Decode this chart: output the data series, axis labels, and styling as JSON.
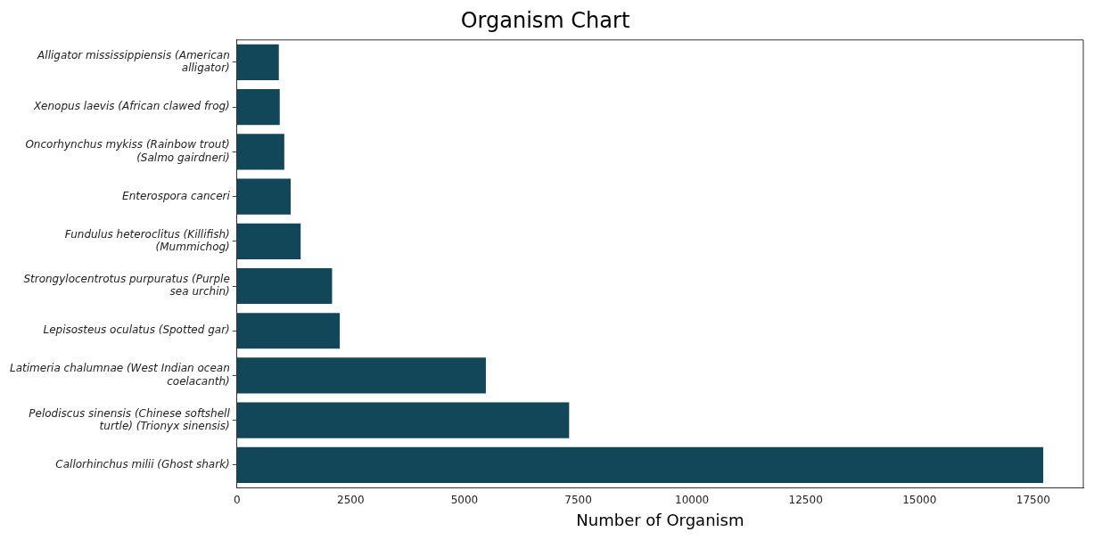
{
  "chart_data": {
    "type": "bar",
    "orientation": "horizontal",
    "title": "Organism Chart",
    "xlabel": "Number of Organism",
    "categories": [
      "Alligator mississippiensis (American alligator)",
      "Xenopus laevis (African clawed frog)",
      "Oncorhynchus mykiss (Rainbow trout) (Salmo gairdneri)",
      "Enterospora canceri",
      "Fundulus heteroclitus (Killifish) (Mummichog)",
      "Strongylocentrotus purpuratus (Purple sea urchin)",
      "Lepisosteus oculatus (Spotted gar)",
      "Latimeria chalumnae (West Indian ocean coelacanth)",
      "Pelodiscus sinensis (Chinese softshell turtle) (Trionyx sinensis)",
      "Callorhinchus milii (Ghost shark)"
    ],
    "values": [
      920,
      940,
      1040,
      1180,
      1400,
      2090,
      2260,
      5470,
      7300,
      17720
    ],
    "color": "#12475a",
    "xlim": [
      0,
      18600
    ],
    "xticks": [
      0,
      2500,
      5000,
      7500,
      10000,
      12500,
      15000,
      17500
    ],
    "grid": false,
    "legend": false
  }
}
